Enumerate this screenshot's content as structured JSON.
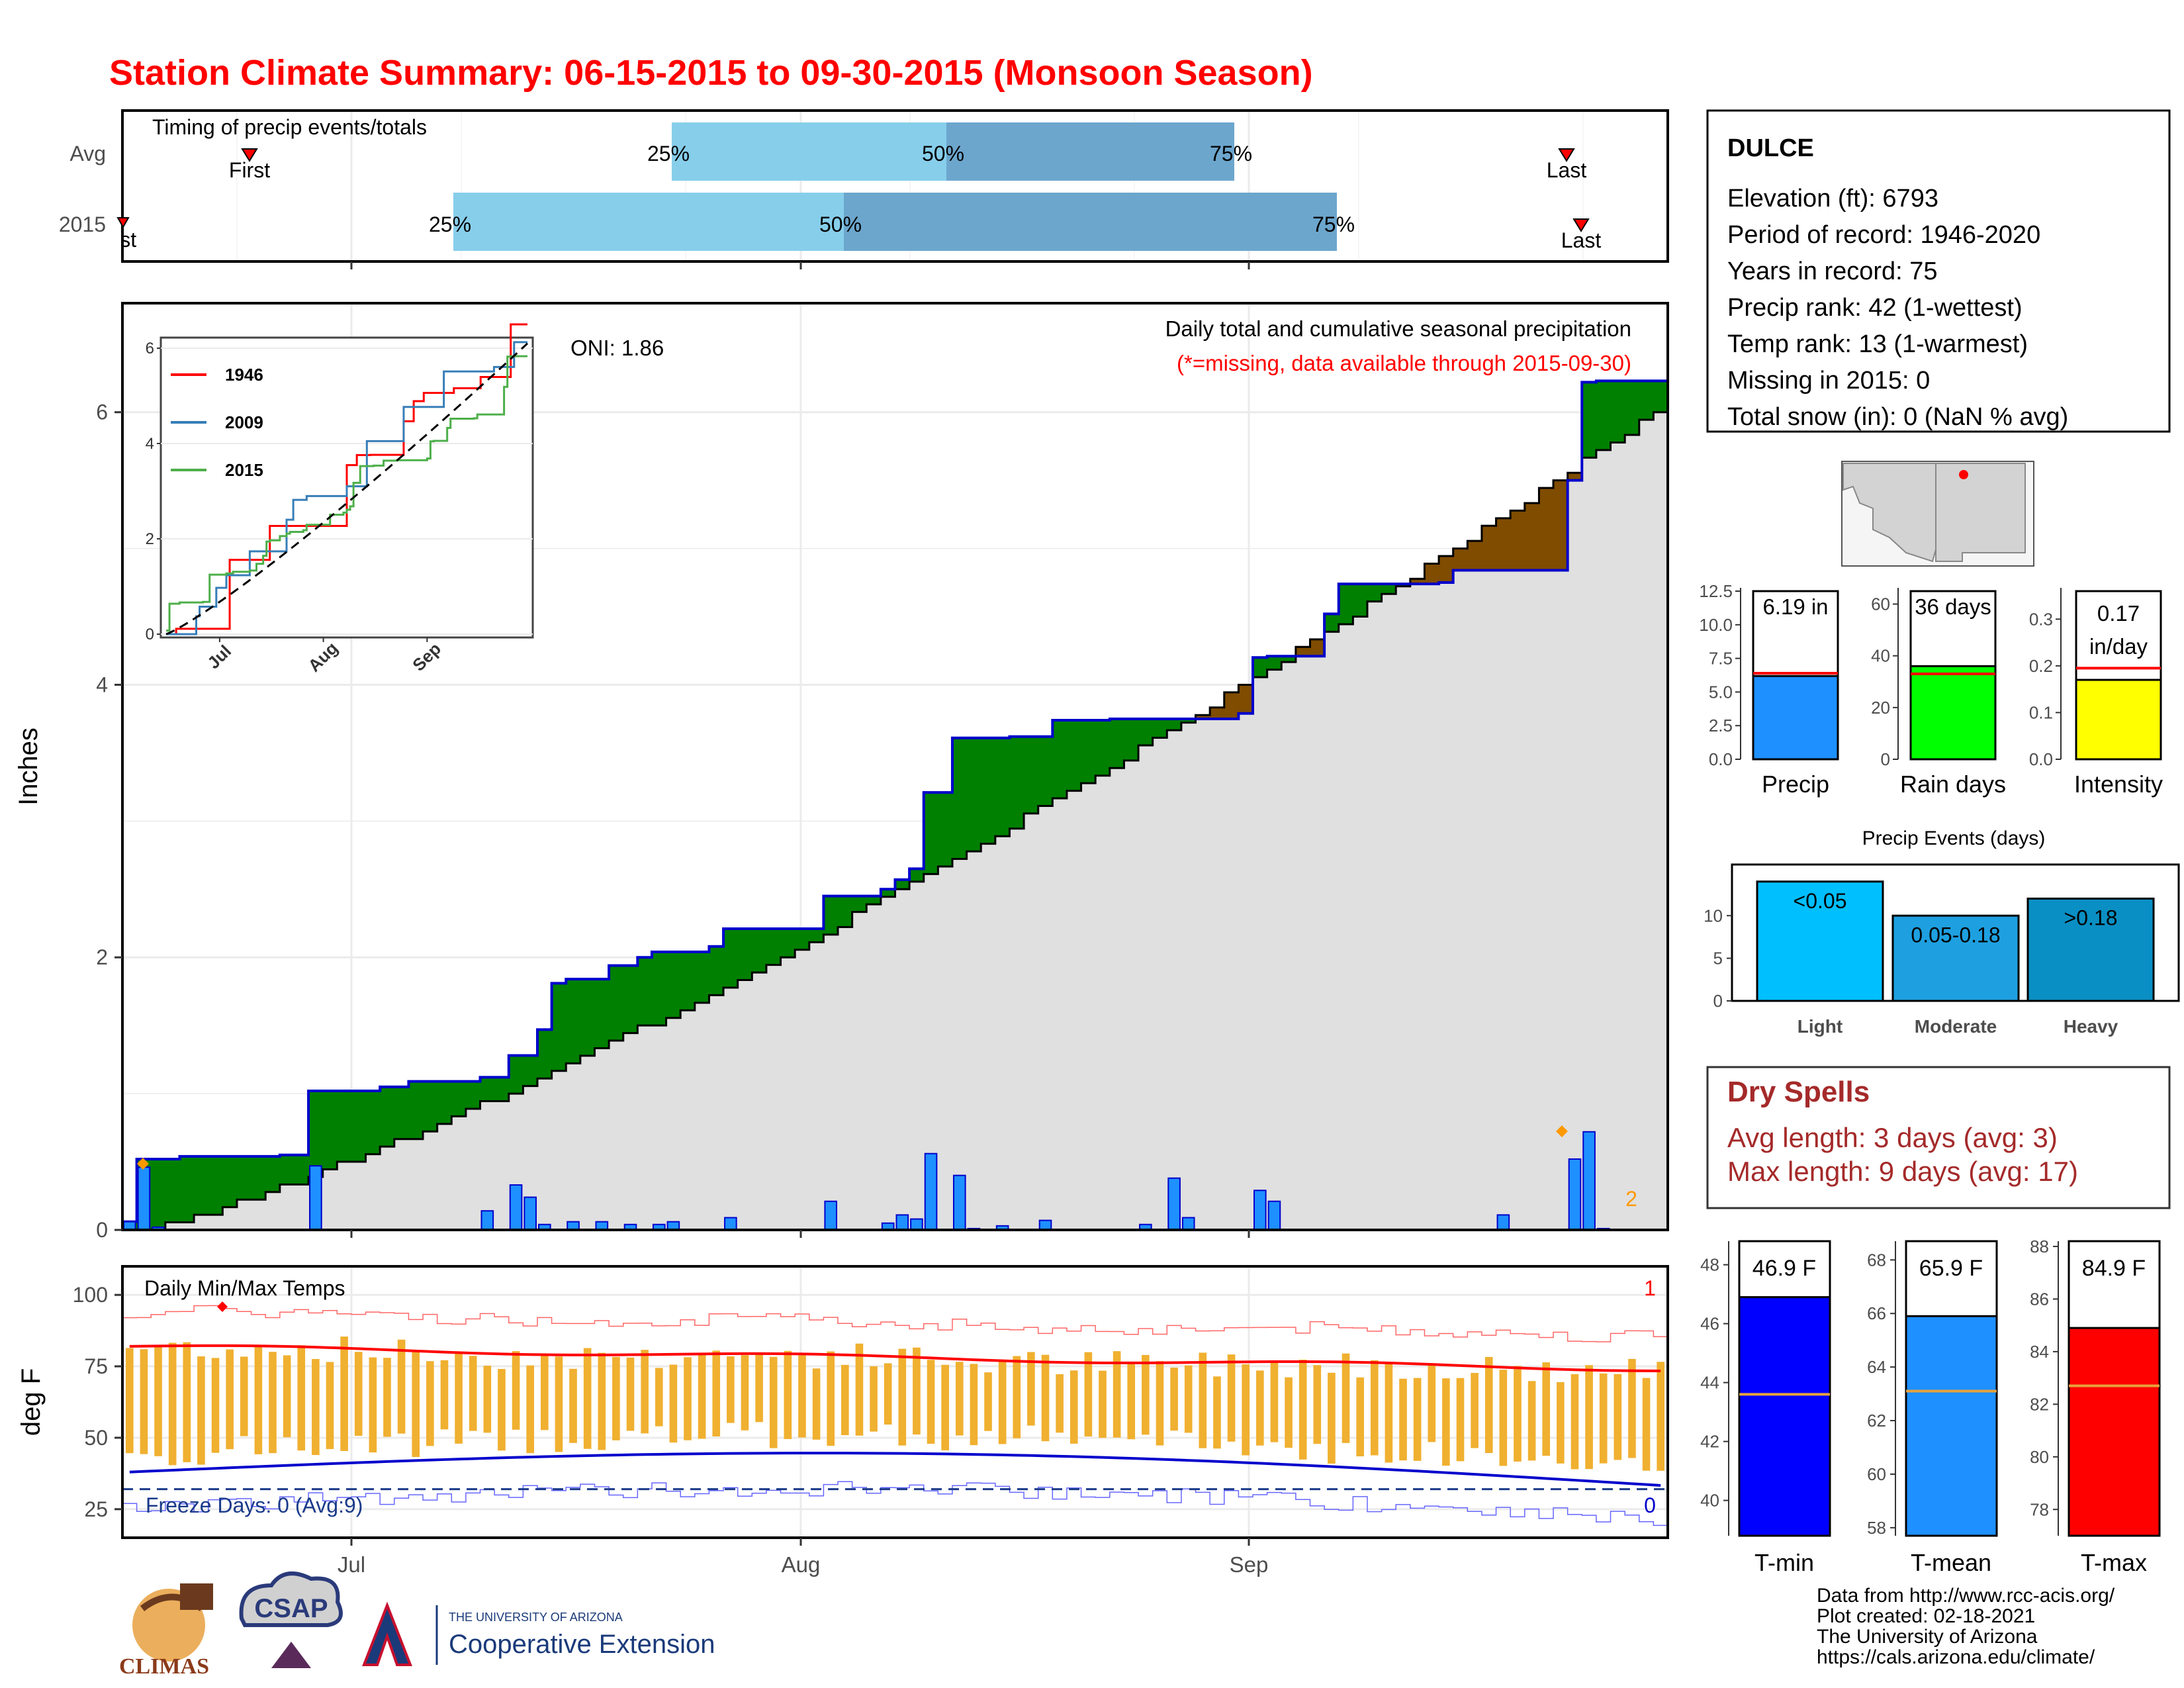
{
  "title": "Station Climate Summary: 06-15-2015 to 09-30-2015 (Monsoon Season)",
  "colors": {
    "title": "#ff0000",
    "green": "#008000",
    "brown": "#7f4c00",
    "blue_line": "#0000cc",
    "grey_fill": "#e0e0e0",
    "bar_blue": "#1e90ff",
    "quartile_light": "#87ceeb",
    "quartile_dark": "#6ca6cd",
    "temp_bar": "#f0b030",
    "tmax_line": "#ff0000",
    "tmin_line": "#0000cc",
    "dry_spell_text": "#a52a2a"
  },
  "timing_panel": {
    "title": "Timing of precip events/totals",
    "rows": [
      {
        "label": "Avg",
        "first_label": "First",
        "last_label": "Last",
        "q25": "25%",
        "q50": "50%",
        "q75": "75%"
      },
      {
        "label": "2015",
        "first_label": "First",
        "last_label": "Last",
        "q25": "25%",
        "q50": "50%",
        "q75": "75%"
      }
    ]
  },
  "main_panel": {
    "ylabel": "Inches",
    "oni": "ONI: 1.86",
    "caption": "Daily total and cumulative seasonal precipitation",
    "note": "(*=missing, data available through 2015-09-30)",
    "corner_count": "2",
    "x_ticks": [
      "Jul",
      "Aug",
      "Sep"
    ],
    "y_ticks": [
      "0",
      "2",
      "4",
      "6"
    ],
    "inset": {
      "legend": [
        "1946",
        "2009",
        "2015"
      ],
      "legend_colors": [
        "#ff0000",
        "#377eb8",
        "#4daf4a"
      ],
      "y_ticks": [
        "0",
        "2",
        "4",
        "6"
      ],
      "x_ticks": [
        "Jul",
        "Aug",
        "Sep"
      ]
    }
  },
  "temp_panel": {
    "ylabel": "deg F",
    "title": "Daily Min/Max Temps",
    "freeze_text": "Freeze Days: 0 (Avg:9)",
    "top_count": "1",
    "bottom_count": "0",
    "y_ticks": [
      "25",
      "50",
      "75",
      "100"
    ],
    "x_ticks": [
      "Jul",
      "Aug",
      "Sep"
    ]
  },
  "station": {
    "name": "DULCE",
    "lines": [
      "Elevation (ft): 6793",
      "Period of record: 1946-2020",
      "Years in record: 75",
      "Precip rank: 42 (1-wettest)",
      "Temp rank: 13 (1-warmest)",
      "Missing in 2015: 0",
      "Total snow (in): 0 (NaN % avg)"
    ]
  },
  "summary_bars": [
    {
      "label": "Precip",
      "value_text": "6.19 in",
      "value": 6.19,
      "avg": 6.4,
      "ymax": 12.5,
      "ticks": [
        "0.0",
        "2.5",
        "5.0",
        "7.5",
        "10.0",
        "12.5"
      ],
      "color": "#1e90ff"
    },
    {
      "label": "Rain days",
      "value_text": "36 days",
      "value": 36,
      "avg": 33,
      "ymax": 65,
      "ticks": [
        "0",
        "20",
        "40",
        "60"
      ],
      "color": "#00ff00"
    },
    {
      "label": "Intensity",
      "value_text": "0.17 in/day",
      "value_line1": "0.17",
      "value_line2": "in/day",
      "value": 0.17,
      "avg": 0.195,
      "ymax": 0.36,
      "ticks": [
        "0.0",
        "0.1",
        "0.2",
        "0.3"
      ],
      "color": "#ffff00"
    }
  ],
  "precip_events": {
    "title": "Precip Events (days)",
    "ticks": [
      "0",
      "5",
      "10"
    ],
    "bars": [
      {
        "label": "Light",
        "range": "<0.05",
        "value": 14,
        "color": "#00bfff"
      },
      {
        "label": "Moderate",
        "range": "0.05-0.18",
        "value": 10,
        "color": "#1ea0e0"
      },
      {
        "label": "Heavy",
        "range": ">0.18",
        "value": 12,
        "color": "#0a8fc4"
      }
    ]
  },
  "dry_spells": {
    "title": "Dry Spells",
    "avg": "Avg length: 3 days (avg: 3)",
    "max": "Max length: 9 days (avg: 17)"
  },
  "temp_bars": [
    {
      "label": "T-min",
      "value_text": "46.9 F",
      "value": 46.9,
      "avg": 43.6,
      "ymin": 38.8,
      "ymax": 48.8,
      "ticks": [
        "40",
        "42",
        "44",
        "46",
        "48"
      ],
      "color": "#0000ff"
    },
    {
      "label": "T-mean",
      "value_text": "65.9 F",
      "value": 65.9,
      "avg": 63.1,
      "ymin": 57.7,
      "ymax": 68.7,
      "ticks": [
        "58",
        "60",
        "62",
        "64",
        "66",
        "68"
      ],
      "color": "#1e90ff"
    },
    {
      "label": "T-max",
      "value_text": "84.9 F",
      "value": 84.9,
      "avg": 82.7,
      "ymin": 77.0,
      "ymax": 88.2,
      "ticks": [
        "78",
        "80",
        "82",
        "84",
        "86",
        "88"
      ],
      "color": "#ff0000"
    }
  ],
  "footer": {
    "lines": [
      "Data from http://www.rcc-acis.org/",
      "Plot created: 02-18-2021",
      "The University of Arizona",
      "https://cals.arizona.edu/climate/"
    ],
    "logos": {
      "climas": "CLIMAS",
      "csap": "CSAP",
      "ua_small": "THE UNIVERSITY OF ARIZONA",
      "ua_big": "Cooperative Extension"
    }
  },
  "chart_data": [
    {
      "type": "area",
      "title": "Daily total and cumulative seasonal precipitation",
      "ylabel": "Inches",
      "ylim": [
        0,
        6.8
      ],
      "x_range": [
        "2015-06-15",
        "2015-09-30"
      ],
      "cumulative_2015_steps": [
        [
          "2015-06-15",
          0.06
        ],
        [
          "2015-06-16",
          0.52
        ],
        [
          "2015-06-19",
          0.54
        ],
        [
          "2015-06-26",
          0.55
        ],
        [
          "2015-06-28",
          1.02
        ],
        [
          "2015-07-03",
          1.05
        ],
        [
          "2015-07-05",
          1.09
        ],
        [
          "2015-07-10",
          1.12
        ],
        [
          "2015-07-12",
          1.28
        ],
        [
          "2015-07-14",
          1.47
        ],
        [
          "2015-07-15",
          1.81
        ],
        [
          "2015-07-16",
          1.84
        ],
        [
          "2015-07-19",
          1.94
        ],
        [
          "2015-07-21",
          2.0
        ],
        [
          "2015-07-22",
          2.04
        ],
        [
          "2015-07-26",
          2.08
        ],
        [
          "2015-07-27",
          2.21
        ],
        [
          "2015-07-31",
          2.21
        ],
        [
          "2015-08-03",
          2.45
        ],
        [
          "2015-08-07",
          2.5
        ],
        [
          "2015-08-08",
          2.57
        ],
        [
          "2015-08-09",
          2.65
        ],
        [
          "2015-08-10",
          3.21
        ],
        [
          "2015-08-12",
          3.61
        ],
        [
          "2015-08-16",
          3.62
        ],
        [
          "2015-08-19",
          3.74
        ],
        [
          "2015-08-23",
          3.75
        ],
        [
          "2015-09-01",
          3.79
        ],
        [
          "2015-09-02",
          4.2
        ],
        [
          "2015-09-03",
          4.21
        ],
        [
          "2015-09-07",
          4.52
        ],
        [
          "2015-09-08",
          4.74
        ],
        [
          "2015-09-15",
          4.75
        ],
        [
          "2015-09-16",
          4.84
        ],
        [
          "2015-09-24",
          5.5
        ],
        [
          "2015-09-25",
          6.22
        ],
        [
          "2015-09-26",
          6.23
        ],
        [
          "2015-09-30",
          6.23
        ]
      ],
      "average_cumulative_end": 6.1,
      "daily_precip_2015": [
        [
          "2015-06-15",
          0.06
        ],
        [
          "2015-06-16",
          0.46
        ],
        [
          "2015-06-17",
          0.02
        ],
        [
          "2015-06-28",
          0.47
        ],
        [
          "2015-07-10",
          0.14
        ],
        [
          "2015-07-12",
          0.33
        ],
        [
          "2015-07-13",
          0.24
        ],
        [
          "2015-07-14",
          0.04
        ],
        [
          "2015-07-16",
          0.06
        ],
        [
          "2015-07-18",
          0.06
        ],
        [
          "2015-07-20",
          0.04
        ],
        [
          "2015-07-22",
          0.04
        ],
        [
          "2015-07-23",
          0.06
        ],
        [
          "2015-07-27",
          0.09
        ],
        [
          "2015-08-03",
          0.21
        ],
        [
          "2015-08-07",
          0.05
        ],
        [
          "2015-08-08",
          0.11
        ],
        [
          "2015-08-09",
          0.08
        ],
        [
          "2015-08-10",
          0.56
        ],
        [
          "2015-08-12",
          0.4
        ],
        [
          "2015-08-13",
          0.01
        ],
        [
          "2015-08-15",
          0.03
        ],
        [
          "2015-08-18",
          0.07
        ],
        [
          "2015-08-25",
          0.04
        ],
        [
          "2015-08-27",
          0.38
        ],
        [
          "2015-08-28",
          0.09
        ],
        [
          "2015-09-02",
          0.29
        ],
        [
          "2015-09-03",
          0.21
        ],
        [
          "2015-09-19",
          0.11
        ],
        [
          "2015-09-24",
          0.52
        ],
        [
          "2015-09-25",
          0.72
        ],
        [
          "2015-09-26",
          0.01
        ]
      ]
    },
    {
      "type": "line",
      "title": "Daily Min/Max Temps",
      "ylabel": "deg F",
      "ylim": [
        15,
        110
      ],
      "x_range": [
        "2015-06-15",
        "2015-09-30"
      ],
      "series": [
        {
          "name": "avg max",
          "start": 82,
          "end": 74
        },
        {
          "name": "avg min",
          "start": 38,
          "end": 33
        },
        {
          "name": "freeze line",
          "value": 32
        }
      ]
    }
  ]
}
